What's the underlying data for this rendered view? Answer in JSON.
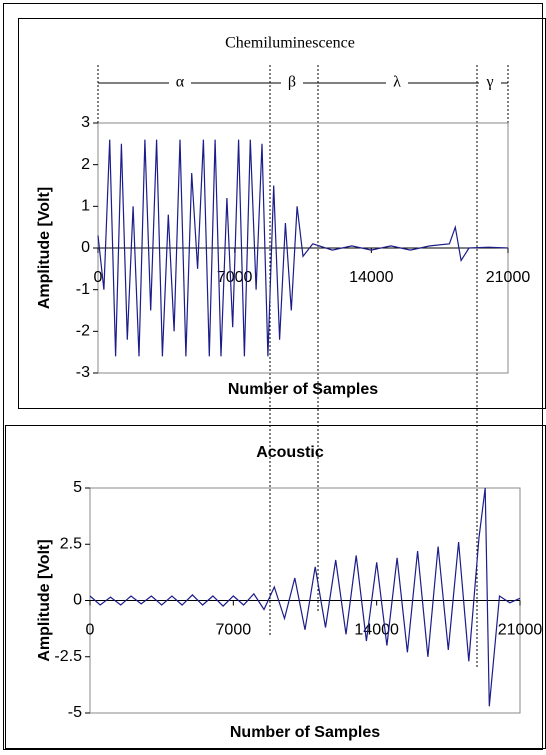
{
  "chart_data": [
    {
      "type": "line",
      "title": "Chemiluminescence",
      "xlabel": "Number of Samples",
      "ylabel": "Amplitude [Volt]",
      "annotations": [
        "α",
        "β",
        "λ",
        "γ"
      ],
      "x": [
        0,
        300,
        600,
        900,
        1200,
        1500,
        1800,
        2100,
        2400,
        2700,
        3000,
        3300,
        3600,
        3900,
        4200,
        4500,
        4800,
        5100,
        5400,
        5700,
        6000,
        6300,
        6600,
        6900,
        7200,
        7500,
        7800,
        8100,
        8400,
        8700,
        9000,
        9300,
        9600,
        9900,
        10200,
        10500,
        11000,
        12000,
        13000,
        14000,
        15000,
        16000,
        17000,
        18000,
        18300,
        18600,
        19000,
        20000,
        21000
      ],
      "series": [
        {
          "name": "Chemiluminescence",
          "color": "#1c1c8a",
          "values": [
            0.3,
            -1.0,
            2.6,
            -2.6,
            2.5,
            -2.2,
            1.0,
            -2.6,
            2.6,
            -1.5,
            2.6,
            -2.6,
            0.8,
            -2.0,
            2.6,
            -2.6,
            1.8,
            -0.5,
            2.6,
            -2.6,
            2.6,
            -2.6,
            1.2,
            -1.9,
            2.6,
            -2.6,
            2.6,
            -1.0,
            2.5,
            -2.6,
            1.5,
            -2.2,
            0.6,
            -1.5,
            1.0,
            -0.2,
            0.1,
            -0.05,
            0.05,
            -0.05,
            0.05,
            -0.05,
            0.05,
            0.1,
            0.5,
            -0.3,
            0.0,
            0.02,
            0.0
          ]
        }
      ],
      "xlim": [
        0,
        21000
      ],
      "xticks": [
        0,
        7000,
        14000,
        21000
      ],
      "ylim": [
        -3,
        3
      ],
      "yticks": [
        -3,
        -2,
        -1,
        0,
        1,
        2,
        3
      ]
    },
    {
      "type": "line",
      "title": "Acoustic",
      "xlabel": "Number of Samples",
      "ylabel": "Amplitude [Volt]",
      "x": [
        0,
        500,
        1000,
        1500,
        2000,
        2500,
        3000,
        3500,
        4000,
        4500,
        5000,
        5500,
        6000,
        6500,
        7000,
        7500,
        8000,
        8500,
        9000,
        9500,
        10000,
        10500,
        11000,
        11500,
        12000,
        12500,
        13000,
        13500,
        14000,
        14500,
        15000,
        15500,
        16000,
        16500,
        17000,
        17500,
        18000,
        18500,
        19000,
        19300,
        19500,
        20000,
        20500,
        21000
      ],
      "series": [
        {
          "name": "Acoustic",
          "color": "#1c1c8a",
          "values": [
            0.2,
            -0.2,
            0.15,
            -0.2,
            0.2,
            -0.15,
            0.2,
            -0.2,
            0.2,
            -0.2,
            0.25,
            -0.2,
            0.2,
            -0.25,
            0.2,
            -0.2,
            0.3,
            -0.4,
            0.6,
            -0.8,
            1.0,
            -1.3,
            1.5,
            -1.2,
            1.8,
            -1.5,
            2.0,
            -1.8,
            1.7,
            -2.0,
            1.9,
            -2.3,
            2.2,
            -2.5,
            2.4,
            -2.2,
            2.6,
            -2.7,
            2.8,
            5,
            -4.7,
            0.2,
            -0.1,
            0.1
          ]
        }
      ],
      "xlim": [
        0,
        21000
      ],
      "xticks": [
        0,
        7000,
        14000,
        21000
      ],
      "ylim": [
        -5,
        5
      ],
      "yticks": [
        5,
        2.5,
        0,
        -2.5,
        -5
      ]
    }
  ]
}
